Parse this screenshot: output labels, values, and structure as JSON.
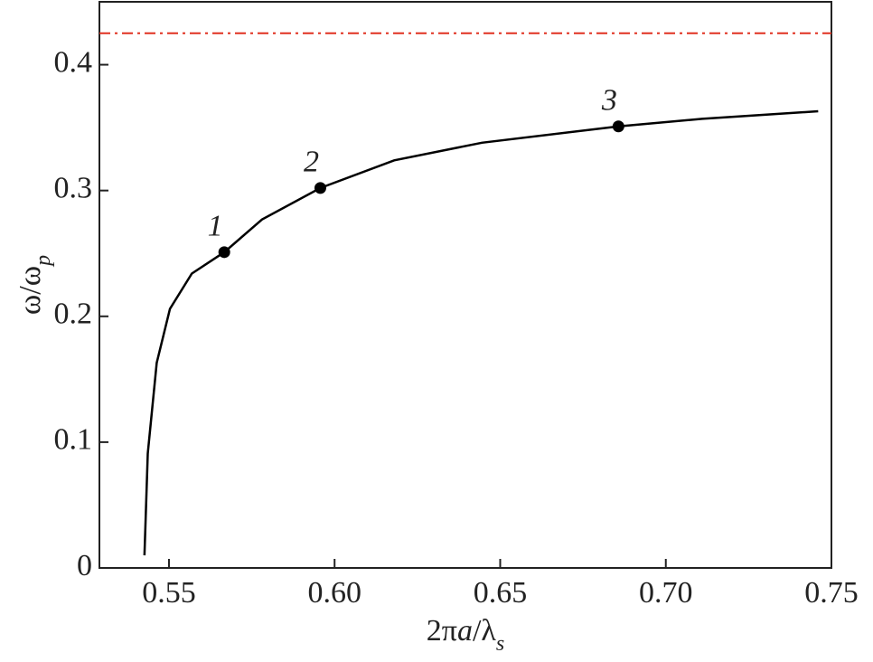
{
  "chart_data": {
    "type": "line",
    "xlabel": [
      "2π",
      "a",
      "/λ",
      "s"
    ],
    "ylabel": [
      "ω/ω",
      "p"
    ],
    "xlim": [
      0.529,
      0.75
    ],
    "ylim": [
      0,
      0.45
    ],
    "xticks": [
      0.55,
      {
        "value": 0.6,
        "label": "0.60"
      },
      0.65,
      {
        "value": 0.7,
        "label": "0.70"
      },
      0.75
    ],
    "yticks": [
      0,
      0.1,
      0.2,
      0.3,
      0.4
    ],
    "series": [
      {
        "color": "#000000",
        "x": [
          0.5426,
          0.5436,
          0.5463,
          0.5503,
          0.5569,
          0.5667,
          0.5781,
          0.5957,
          0.618,
          0.6445,
          0.6857,
          0.711,
          0.746
        ],
        "values": [
          0.01,
          0.091,
          0.163,
          0.206,
          0.234,
          0.251,
          0.277,
          0.302,
          0.324,
          0.338,
          0.351,
          0.357,
          0.363
        ]
      }
    ],
    "points": {
      "color": "#000000",
      "x": [
        0.5667,
        0.5957,
        0.6857
      ],
      "values": [
        0.251,
        0.302,
        0.351
      ],
      "labels": [
        "1",
        "2",
        "3"
      ]
    },
    "hline": {
      "value": 0.425,
      "color": "#e03020"
    }
  }
}
